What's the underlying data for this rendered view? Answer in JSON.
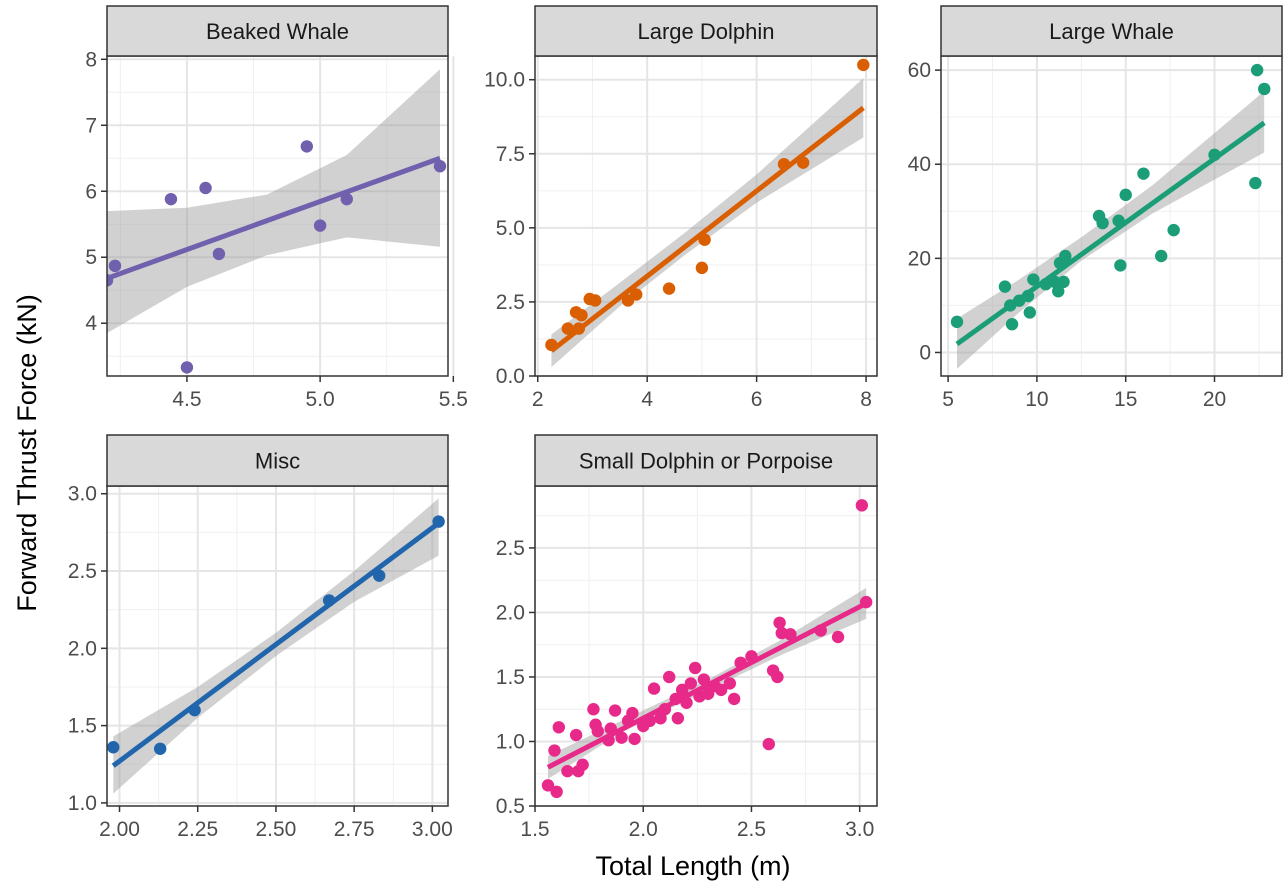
{
  "figure": {
    "xlabel": "Total Length (m)",
    "ylabel": "Forward Thrust Force (kN)"
  },
  "chart_data": [
    {
      "type": "scatter",
      "title": "Beaked Whale",
      "color": "#7060ad",
      "xlim": [
        4.2,
        5.48
      ],
      "ylim": [
        3.2,
        8.05
      ],
      "xticks": [
        4.5,
        5.0,
        5.5
      ],
      "xtick_labels": [
        "4.5",
        "5.0",
        "5.5"
      ],
      "yticks": [
        4,
        5,
        6,
        7,
        8
      ],
      "ytick_labels": [
        "4",
        "5",
        "6",
        "7",
        "8"
      ],
      "points": [
        [
          4.2,
          4.65
        ],
        [
          4.23,
          4.87
        ],
        [
          4.44,
          5.88
        ],
        [
          4.5,
          3.33
        ],
        [
          4.57,
          6.05
        ],
        [
          4.62,
          5.05
        ],
        [
          4.95,
          6.68
        ],
        [
          5.0,
          5.48
        ],
        [
          5.1,
          5.88
        ],
        [
          5.45,
          6.38
        ]
      ],
      "fit": {
        "x": [
          4.2,
          5.45
        ],
        "y": [
          4.68,
          6.5
        ]
      },
      "band": {
        "x": [
          4.2,
          4.5,
          4.8,
          5.1,
          5.45
        ],
        "lower": [
          3.85,
          4.55,
          5.03,
          5.3,
          5.16
        ],
        "upper": [
          5.7,
          5.75,
          5.95,
          6.55,
          7.85
        ]
      }
    },
    {
      "type": "scatter",
      "title": "Large Dolphin",
      "color": "#d95f02",
      "xlim": [
        1.95,
        8.2
      ],
      "ylim": [
        0,
        10.8
      ],
      "xticks": [
        2,
        4,
        6,
        8
      ],
      "xtick_labels": [
        "2",
        "4",
        "6",
        "8"
      ],
      "yticks": [
        0,
        2.5,
        5,
        7.5,
        10
      ],
      "ytick_labels": [
        "0.0",
        "2.5",
        "5.0",
        "7.5",
        "10.0"
      ],
      "points": [
        [
          2.25,
          1.05
        ],
        [
          2.55,
          1.6
        ],
        [
          2.7,
          2.15
        ],
        [
          2.75,
          1.6
        ],
        [
          2.8,
          2.05
        ],
        [
          2.95,
          2.6
        ],
        [
          3.05,
          2.55
        ],
        [
          3.65,
          2.55
        ],
        [
          3.8,
          2.75
        ],
        [
          4.4,
          2.95
        ],
        [
          5.0,
          3.65
        ],
        [
          5.05,
          4.6
        ],
        [
          6.5,
          7.15
        ],
        [
          6.85,
          7.2
        ],
        [
          7.95,
          10.5
        ]
      ],
      "fit": {
        "x": [
          2.25,
          7.95
        ],
        "y": [
          0.85,
          9.05
        ]
      },
      "band": {
        "x": [
          2.25,
          3.5,
          4.7,
          6.0,
          7.95
        ],
        "lower": [
          0.3,
          2.35,
          4.1,
          5.85,
          8.05
        ],
        "upper": [
          1.4,
          3.15,
          4.85,
          6.8,
          10.05
        ]
      }
    },
    {
      "type": "scatter",
      "title": "Large Whale",
      "color": "#1b9e77",
      "xlim": [
        4.6,
        23.8
      ],
      "ylim": [
        -5,
        63
      ],
      "xticks": [
        5,
        10,
        15,
        20
      ],
      "xtick_labels": [
        "5",
        "10",
        "15",
        "20"
      ],
      "yticks": [
        0,
        20,
        40,
        60
      ],
      "ytick_labels": [
        "0",
        "20",
        "40",
        "60"
      ],
      "points": [
        [
          5.5,
          6.5
        ],
        [
          8.2,
          14
        ],
        [
          8.5,
          10
        ],
        [
          8.6,
          6
        ],
        [
          9.0,
          11
        ],
        [
          9.5,
          12
        ],
        [
          9.6,
          8.5
        ],
        [
          9.8,
          15.5
        ],
        [
          10.5,
          14.5
        ],
        [
          11.0,
          15
        ],
        [
          11.2,
          13
        ],
        [
          11.3,
          19
        ],
        [
          11.5,
          15
        ],
        [
          11.6,
          20.5
        ],
        [
          13.5,
          29
        ],
        [
          13.7,
          27.5
        ],
        [
          14.6,
          28
        ],
        [
          14.7,
          18.5
        ],
        [
          15.0,
          33.5
        ],
        [
          16.0,
          38
        ],
        [
          17.0,
          20.5
        ],
        [
          17.7,
          26
        ],
        [
          20.0,
          42
        ],
        [
          22.3,
          36
        ],
        [
          22.4,
          60
        ],
        [
          22.8,
          56
        ]
      ],
      "fit": {
        "x": [
          5.5,
          22.8
        ],
        "y": [
          1.8,
          48.8
        ]
      },
      "band": {
        "x": [
          5.5,
          9.0,
          12.5,
          16.5,
          22.8
        ],
        "lower": [
          -3.5,
          8.5,
          19.5,
          29.5,
          42.5
        ],
        "upper": [
          7.2,
          15.5,
          24.5,
          35.5,
          55.5
        ]
      }
    },
    {
      "type": "scatter",
      "title": "Misc",
      "color": "#2166ac",
      "xlim": [
        1.96,
        3.05
      ],
      "ylim": [
        0.98,
        3.05
      ],
      "xticks": [
        2.0,
        2.25,
        2.5,
        2.75,
        3.0
      ],
      "xtick_labels": [
        "2.00",
        "2.25",
        "2.50",
        "2.75",
        "3.00"
      ],
      "yticks": [
        1.0,
        1.5,
        2.0,
        2.5,
        3.0
      ],
      "ytick_labels": [
        "1.0",
        "1.5",
        "2.0",
        "2.5",
        "3.0"
      ],
      "points": [
        [
          1.98,
          1.36
        ],
        [
          2.13,
          1.35
        ],
        [
          2.24,
          1.6
        ],
        [
          2.67,
          2.31
        ],
        [
          2.83,
          2.47
        ],
        [
          3.02,
          2.82
        ]
      ],
      "fit": {
        "x": [
          1.98,
          3.02
        ],
        "y": [
          1.24,
          2.81
        ]
      },
      "band": {
        "x": [
          1.98,
          2.25,
          2.5,
          2.75,
          3.02
        ],
        "lower": [
          1.06,
          1.55,
          1.95,
          2.3,
          2.6
        ],
        "upper": [
          1.43,
          1.75,
          2.1,
          2.5,
          2.97
        ]
      }
    },
    {
      "type": "scatter",
      "title": "Small Dolphin or Porpoise",
      "color": "#e7298a",
      "xlim": [
        1.5,
        3.08
      ],
      "ylim": [
        0.5,
        2.98
      ],
      "xticks": [
        1.5,
        2.0,
        2.5,
        3.0
      ],
      "xtick_labels": [
        "1.5",
        "2.0",
        "2.5",
        "3.0"
      ],
      "yticks": [
        0.5,
        1.0,
        1.5,
        2.0,
        2.5
      ],
      "ytick_labels": [
        "0.5",
        "1.0",
        "1.5",
        "2.0",
        "2.5"
      ],
      "points": [
        [
          1.56,
          0.66
        ],
        [
          1.59,
          0.93
        ],
        [
          1.6,
          0.61
        ],
        [
          1.61,
          1.11
        ],
        [
          1.65,
          0.77
        ],
        [
          1.69,
          1.05
        ],
        [
          1.7,
          0.77
        ],
        [
          1.72,
          0.82
        ],
        [
          1.77,
          1.25
        ],
        [
          1.78,
          1.13
        ],
        [
          1.79,
          1.08
        ],
        [
          1.84,
          1.01
        ],
        [
          1.85,
          1.1
        ],
        [
          1.87,
          1.24
        ],
        [
          1.9,
          1.03
        ],
        [
          1.93,
          1.16
        ],
        [
          1.95,
          1.22
        ],
        [
          1.96,
          1.02
        ],
        [
          2.0,
          1.12
        ],
        [
          2.03,
          1.16
        ],
        [
          2.05,
          1.41
        ],
        [
          2.08,
          1.18
        ],
        [
          2.1,
          1.25
        ],
        [
          2.12,
          1.5
        ],
        [
          2.15,
          1.33
        ],
        [
          2.16,
          1.18
        ],
        [
          2.18,
          1.4
        ],
        [
          2.2,
          1.3
        ],
        [
          2.22,
          1.45
        ],
        [
          2.24,
          1.57
        ],
        [
          2.26,
          1.35
        ],
        [
          2.28,
          1.48
        ],
        [
          2.3,
          1.37
        ],
        [
          2.33,
          1.43
        ],
        [
          2.36,
          1.4
        ],
        [
          2.4,
          1.45
        ],
        [
          2.42,
          1.33
        ],
        [
          2.45,
          1.61
        ],
        [
          2.5,
          1.66
        ],
        [
          2.58,
          0.98
        ],
        [
          2.6,
          1.55
        ],
        [
          2.62,
          1.5
        ],
        [
          2.63,
          1.92
        ],
        [
          2.64,
          1.84
        ],
        [
          2.68,
          1.83
        ],
        [
          2.82,
          1.86
        ],
        [
          2.9,
          1.81
        ],
        [
          3.01,
          2.83
        ],
        [
          3.03,
          2.08
        ]
      ],
      "fit": {
        "x": [
          1.56,
          3.03
        ],
        "y": [
          0.8,
          2.07
        ]
      },
      "band": {
        "x": [
          1.56,
          1.9,
          2.3,
          2.65,
          3.03
        ],
        "lower": [
          0.71,
          1.07,
          1.4,
          1.68,
          1.95
        ],
        "upper": [
          0.89,
          1.16,
          1.48,
          1.8,
          2.19
        ]
      }
    }
  ]
}
